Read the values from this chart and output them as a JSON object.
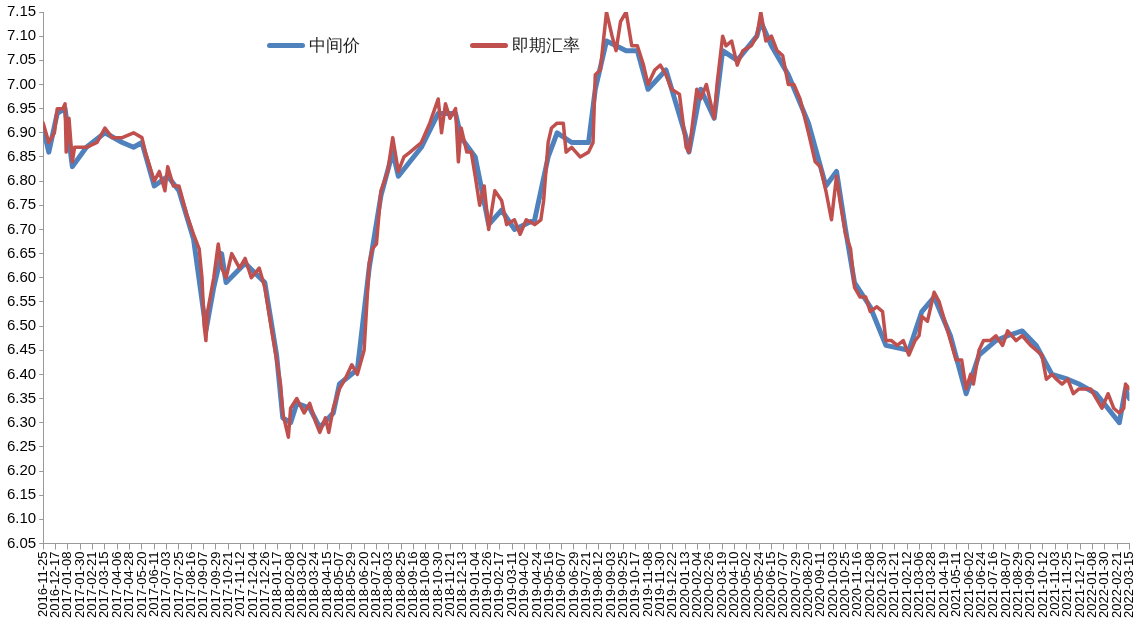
{
  "chart_data": {
    "type": "line",
    "legend": "top",
    "grid": false,
    "marker": "none",
    "line_style": "solid",
    "xlim": [
      "2016-11-25",
      "2022-03-15"
    ],
    "xticks": [
      "2016-11-25",
      "2016-12-17",
      "2017-01-08",
      "2017-01-30",
      "2017-02-21",
      "2017-03-15",
      "2017-04-06",
      "2017-04-28",
      "2017-05-20",
      "2017-06-11",
      "2017-07-03",
      "2017-07-25",
      "2017-08-16",
      "2017-09-07",
      "2017-09-29",
      "2017-10-21",
      "2017-11-12",
      "2017-12-04",
      "2017-12-26",
      "2018-01-17",
      "2018-02-08",
      "2018-03-02",
      "2018-03-24",
      "2018-04-15",
      "2018-05-07",
      "2018-05-29",
      "2018-06-20",
      "2018-07-12",
      "2018-08-03",
      "2018-08-25",
      "2018-09-16",
      "2018-10-08",
      "2018-10-30",
      "2018-11-21",
      "2018-12-13",
      "2019-01-04",
      "2019-01-26",
      "2019-02-17",
      "2019-03-11",
      "2019-04-02",
      "2019-04-24",
      "2019-05-16",
      "2019-06-07",
      "2019-06-29",
      "2019-07-21",
      "2019-08-12",
      "2019-09-03",
      "2019-09-25",
      "2019-10-17",
      "2019-11-08",
      "2019-11-30",
      "2019-12-22",
      "2020-01-13",
      "2020-02-04",
      "2020-02-26",
      "2020-03-19",
      "2020-04-10",
      "2020-05-02",
      "2020-05-24",
      "2020-06-15",
      "2020-07-07",
      "2020-07-29",
      "2020-08-20",
      "2020-09-11",
      "2020-10-03",
      "2020-10-25",
      "2020-11-16",
      "2020-12-08",
      "2020-12-30",
      "2021-01-21",
      "2021-02-12",
      "2021-03-06",
      "2021-03-28",
      "2021-04-19",
      "2021-05-11",
      "2021-06-02",
      "2021-06-24",
      "2021-07-16",
      "2021-08-07",
      "2021-08-29",
      "2021-09-20",
      "2021-10-12",
      "2021-11-03",
      "2021-11-25",
      "2021-12-17",
      "2022-01-08",
      "2022-01-30",
      "2022-02-21",
      "2022-03-15"
    ],
    "ylim": [
      6.05,
      7.15
    ],
    "yticks": [
      6.05,
      {
        "value": 6.1,
        "label": "6.10"
      },
      6.15,
      {
        "value": 6.2,
        "label": "6.20"
      },
      6.25,
      {
        "value": 6.3,
        "label": "6.30"
      },
      6.35,
      {
        "value": 6.4,
        "label": "6.40"
      },
      6.45,
      {
        "value": 6.5,
        "label": "6.50"
      },
      6.55,
      {
        "value": 6.6,
        "label": "6.60"
      },
      6.65,
      {
        "value": 6.7,
        "label": "6.70"
      },
      6.75,
      {
        "value": 6.8,
        "label": "6.80"
      },
      6.85,
      {
        "value": 6.9,
        "label": "6.90"
      },
      6.95,
      {
        "value": 7,
        "label": "7.00"
      },
      7.05,
      {
        "value": 7.1,
        "label": "7.10"
      },
      7.15
    ],
    "series": [
      {
        "name": "中间价",
        "color": "#4f81bd",
        "x": [
          "2016-11-25",
          "2016-12-05",
          "2016-12-20",
          "2017-01-03",
          "2017-01-16",
          "2017-02-10",
          "2017-03-15",
          "2017-04-15",
          "2017-05-05",
          "2017-05-20",
          "2017-06-11",
          "2017-07-05",
          "2017-07-25",
          "2017-08-20",
          "2017-09-08",
          "2017-09-11",
          "2017-09-25",
          "2017-10-09",
          "2017-10-17",
          "2017-11-20",
          "2017-12-25",
          "2018-01-15",
          "2018-01-26",
          "2018-02-09",
          "2018-02-20",
          "2018-03-15",
          "2018-04-02",
          "2018-04-26",
          "2018-05-07",
          "2018-06-08",
          "2018-06-29",
          "2018-07-20",
          "2018-08-10",
          "2018-08-20",
          "2018-09-30",
          "2018-10-30",
          "2018-11-30",
          "2018-12-10",
          "2019-01-04",
          "2019-01-28",
          "2019-02-20",
          "2019-03-15",
          "2019-04-20",
          "2019-05-14",
          "2019-05-30",
          "2019-06-25",
          "2019-07-25",
          "2019-08-06",
          "2019-08-20",
          "2019-08-26",
          "2019-09-30",
          "2019-10-20",
          "2019-11-08",
          "2019-12-10",
          "2020-01-15",
          "2020-01-20",
          "2020-02-10",
          "2020-03-05",
          "2020-03-20",
          "2020-04-15",
          "2020-05-20",
          "2020-05-27",
          "2020-06-15",
          "2020-07-15",
          "2020-08-20",
          "2020-09-20",
          "2020-10-09",
          "2020-10-25",
          "2020-11-10",
          "2020-12-08",
          "2021-01-05",
          "2021-02-15",
          "2021-03-10",
          "2021-04-01",
          "2021-04-30",
          "2021-05-28",
          "2021-06-20",
          "2021-07-20",
          "2021-08-10",
          "2021-09-05",
          "2021-09-30",
          "2021-10-28",
          "2021-11-25",
          "2021-12-15",
          "2022-01-15",
          "2022-02-25",
          "2022-03-08",
          "2022-03-15"
        ],
        "values": [
          6.91,
          6.86,
          6.94,
          6.95,
          6.83,
          6.87,
          6.9,
          6.88,
          6.87,
          6.88,
          6.79,
          6.81,
          6.78,
          6.68,
          6.52,
          6.49,
          6.58,
          6.65,
          6.59,
          6.63,
          6.59,
          6.44,
          6.31,
          6.3,
          6.34,
          6.33,
          6.29,
          6.32,
          6.38,
          6.41,
          6.62,
          6.77,
          6.86,
          6.81,
          6.87,
          6.94,
          6.94,
          6.89,
          6.85,
          6.71,
          6.74,
          6.7,
          6.72,
          6.85,
          6.9,
          6.88,
          6.88,
          6.99,
          7.06,
          7.09,
          7.07,
          7.07,
          6.99,
          7.03,
          6.89,
          6.86,
          6.99,
          6.93,
          7.07,
          7.05,
          7.1,
          7.13,
          7.08,
          7.02,
          6.92,
          6.79,
          6.82,
          6.7,
          6.59,
          6.54,
          6.46,
          6.45,
          6.53,
          6.56,
          6.48,
          6.36,
          6.44,
          6.47,
          6.48,
          6.49,
          6.46,
          6.4,
          6.39,
          6.38,
          6.36,
          6.3,
          6.37,
          6.35
        ]
      },
      {
        "name": "即期汇率",
        "color": "#c0504d",
        "x": [
          "2016-11-25",
          "2016-12-05",
          "2016-12-15",
          "2016-12-20",
          "2016-12-30",
          "2017-01-03",
          "2017-01-05",
          "2017-01-10",
          "2017-01-16",
          "2017-01-20",
          "2017-02-10",
          "2017-03-01",
          "2017-03-15",
          "2017-03-28",
          "2017-04-15",
          "2017-05-05",
          "2017-05-20",
          "2017-05-26",
          "2017-06-11",
          "2017-06-20",
          "2017-06-30",
          "2017-07-05",
          "2017-07-15",
          "2017-07-25",
          "2017-08-08",
          "2017-08-20",
          "2017-08-30",
          "2017-09-04",
          "2017-09-08",
          "2017-09-11",
          "2017-09-14",
          "2017-09-25",
          "2017-10-03",
          "2017-10-09",
          "2017-10-17",
          "2017-10-27",
          "2017-11-10",
          "2017-11-20",
          "2017-12-01",
          "2017-12-15",
          "2017-12-25",
          "2018-01-05",
          "2018-01-15",
          "2018-01-22",
          "2018-01-26",
          "2018-02-05",
          "2018-02-09",
          "2018-02-20",
          "2018-03-05",
          "2018-03-15",
          "2018-03-26",
          "2018-04-02",
          "2018-04-12",
          "2018-04-18",
          "2018-04-26",
          "2018-05-07",
          "2018-05-17",
          "2018-05-29",
          "2018-06-08",
          "2018-06-20",
          "2018-06-29",
          "2018-07-05",
          "2018-07-12",
          "2018-07-20",
          "2018-08-01",
          "2018-08-10",
          "2018-08-20",
          "2018-08-30",
          "2018-09-10",
          "2018-09-30",
          "2018-10-15",
          "2018-10-30",
          "2018-11-05",
          "2018-11-12",
          "2018-11-20",
          "2018-11-30",
          "2018-12-05",
          "2018-12-10",
          "2018-12-20",
          "2018-12-28",
          "2019-01-04",
          "2019-01-12",
          "2019-01-20",
          "2019-01-28",
          "2019-02-08",
          "2019-02-20",
          "2019-03-01",
          "2019-03-15",
          "2019-03-25",
          "2019-04-05",
          "2019-04-20",
          "2019-05-01",
          "2019-05-06",
          "2019-05-14",
          "2019-05-20",
          "2019-05-30",
          "2019-06-10",
          "2019-06-15",
          "2019-06-25",
          "2019-07-10",
          "2019-07-25",
          "2019-08-02",
          "2019-08-06",
          "2019-08-15",
          "2019-08-26",
          "2019-09-05",
          "2019-09-12",
          "2019-09-20",
          "2019-09-30",
          "2019-10-10",
          "2019-10-20",
          "2019-10-31",
          "2019-11-08",
          "2019-11-20",
          "2019-11-30",
          "2019-12-10",
          "2019-12-20",
          "2020-01-03",
          "2020-01-15",
          "2020-01-20",
          "2020-02-03",
          "2020-02-10",
          "2020-02-20",
          "2020-03-05",
          "2020-03-10",
          "2020-03-20",
          "2020-03-26",
          "2020-04-05",
          "2020-04-15",
          "2020-04-25",
          "2020-05-10",
          "2020-05-20",
          "2020-05-27",
          "2020-06-05",
          "2020-06-15",
          "2020-06-25",
          "2020-07-05",
          "2020-07-15",
          "2020-07-25",
          "2020-08-05",
          "2020-08-20",
          "2020-09-01",
          "2020-09-10",
          "2020-09-20",
          "2020-09-30",
          "2020-10-09",
          "2020-10-15",
          "2020-10-25",
          "2020-11-03",
          "2020-11-10",
          "2020-11-20",
          "2020-11-30",
          "2020-12-08",
          "2020-12-20",
          "2020-12-30",
          "2021-01-05",
          "2021-01-15",
          "2021-01-25",
          "2021-02-05",
          "2021-02-15",
          "2021-02-26",
          "2021-03-05",
          "2021-03-10",
          "2021-03-20",
          "2021-04-01",
          "2021-04-10",
          "2021-04-20",
          "2021-04-30",
          "2021-05-10",
          "2021-05-20",
          "2021-05-28",
          "2021-06-05",
          "2021-06-10",
          "2021-06-20",
          "2021-06-28",
          "2021-07-10",
          "2021-07-20",
          "2021-08-01",
          "2021-08-10",
          "2021-08-25",
          "2021-09-05",
          "2021-09-20",
          "2021-09-30",
          "2021-10-10",
          "2021-10-18",
          "2021-10-28",
          "2021-11-05",
          "2021-11-15",
          "2021-11-25",
          "2021-12-05",
          "2021-12-15",
          "2021-12-25",
          "2022-01-05",
          "2022-01-15",
          "2022-01-25",
          "2022-02-05",
          "2022-02-15",
          "2022-02-25",
          "2022-03-05",
          "2022-03-08",
          "2022-03-15"
        ],
        "values": [
          6.92,
          6.88,
          6.9,
          6.95,
          6.95,
          6.96,
          6.86,
          6.93,
          6.84,
          6.87,
          6.87,
          6.88,
          6.91,
          6.89,
          6.89,
          6.9,
          6.89,
          6.86,
          6.8,
          6.82,
          6.78,
          6.83,
          6.79,
          6.79,
          6.73,
          6.69,
          6.66,
          6.6,
          6.5,
          6.47,
          6.53,
          6.6,
          6.67,
          6.62,
          6.6,
          6.65,
          6.62,
          6.64,
          6.6,
          6.62,
          6.58,
          6.5,
          6.43,
          6.38,
          6.32,
          6.27,
          6.33,
          6.35,
          6.32,
          6.34,
          6.3,
          6.28,
          6.31,
          6.28,
          6.33,
          6.37,
          6.39,
          6.42,
          6.4,
          6.45,
          6.63,
          6.66,
          6.67,
          6.78,
          6.82,
          6.89,
          6.82,
          6.85,
          6.86,
          6.88,
          6.92,
          6.97,
          6.9,
          6.96,
          6.93,
          6.95,
          6.84,
          6.91,
          6.86,
          6.86,
          6.81,
          6.75,
          6.79,
          6.7,
          6.78,
          6.76,
          6.71,
          6.72,
          6.69,
          6.72,
          6.71,
          6.72,
          6.76,
          6.88,
          6.91,
          6.92,
          6.92,
          6.86,
          6.87,
          6.85,
          6.86,
          6.88,
          7.02,
          7.03,
          7.15,
          7.1,
          7.07,
          7.13,
          7.15,
          7.08,
          7.08,
          7.04,
          7,
          7.03,
          7.04,
          7.02,
          6.99,
          6.98,
          6.87,
          6.86,
          6.99,
          6.97,
          7,
          6.93,
          7,
          7.1,
          7.08,
          7.09,
          7.04,
          7.07,
          7.08,
          7.1,
          7.15,
          7.09,
          7.1,
          7.07,
          7.06,
          7,
          7,
          6.97,
          6.9,
          6.84,
          6.83,
          6.78,
          6.72,
          6.81,
          6.76,
          6.69,
          6.66,
          6.58,
          6.56,
          6.56,
          6.53,
          6.54,
          6.53,
          6.47,
          6.47,
          6.46,
          6.47,
          6.44,
          6.47,
          6.48,
          6.52,
          6.51,
          6.57,
          6.55,
          6.51,
          6.47,
          6.43,
          6.43,
          6.37,
          6.4,
          6.38,
          6.45,
          6.47,
          6.47,
          6.48,
          6.46,
          6.49,
          6.47,
          6.48,
          6.46,
          6.45,
          6.44,
          6.39,
          6.4,
          6.39,
          6.38,
          6.39,
          6.36,
          6.37,
          6.37,
          6.37,
          6.35,
          6.33,
          6.36,
          6.33,
          6.32,
          6.33,
          6.38,
          6.37
        ]
      }
    ]
  }
}
